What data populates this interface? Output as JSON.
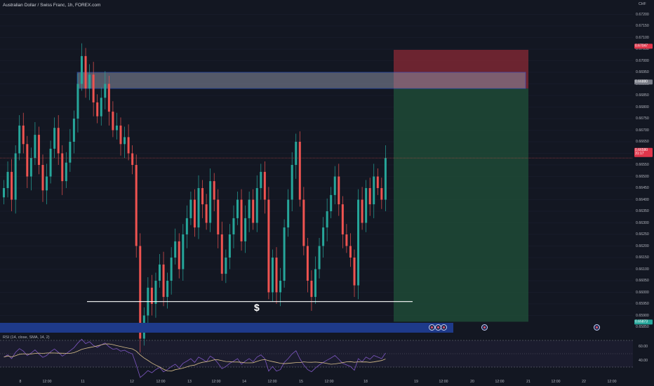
{
  "chart": {
    "symbol_title": "Australian Dollar / Swiss Franc, 1h, FOREX.com",
    "currency": "CHF",
    "annotation_text": "$",
    "rsi_title": "RSI (14, close, SMA, 14, 2)",
    "colors": {
      "background": "#131722",
      "up": "#26a69a",
      "down": "#ef5350",
      "supply_zone": "#8a8fa3",
      "stop_zone": "#8b2a36",
      "target_zone": "#1f4a36",
      "event_bar": "#1e3a8a",
      "rsi_line": "#7e57c2",
      "rsi_sma": "#d9c08a"
    },
    "price_tags": {
      "stop": "0.67047",
      "entry": "0.66880",
      "current": "0.66580",
      "countdown": "31:17",
      "target": "0.65873"
    }
  },
  "chart_data": {
    "type": "candlestick",
    "price_axis": {
      "min": 0.6585,
      "max": 0.6725,
      "ticks": [
        "0.67200",
        "0.67150",
        "0.67100",
        "0.67050",
        "0.67000",
        "0.66950",
        "0.66900",
        "0.66850",
        "0.66800",
        "0.66750",
        "0.66700",
        "0.66650",
        "0.66600",
        "0.66550",
        "0.66500",
        "0.66450",
        "0.66400",
        "0.66350",
        "0.66300",
        "0.66250",
        "0.66200",
        "0.66150",
        "0.66100",
        "0.66050",
        "0.66000",
        "0.65950",
        "0.65900",
        "0.65850"
      ]
    },
    "time_axis": [
      "8",
      "12:00",
      "11",
      "12",
      "12:00",
      "13",
      "12:00",
      "14",
      "12:00",
      "15",
      "12:00",
      "18",
      "19",
      "12:00",
      "20",
      "12:00",
      "21",
      "12:00",
      "22",
      "12:00"
    ],
    "rsi_axis": [
      "60.00",
      "40.00"
    ],
    "levels": {
      "supply_top": 0.6695,
      "supply_bottom": 0.6688,
      "stop": 0.67047,
      "entry": 0.6688,
      "target": 0.65873,
      "current": 0.6658,
      "liquidity_line": 0.6596
    },
    "closes": [
      0.6645,
      0.6652,
      0.664,
      0.666,
      0.6672,
      0.6664,
      0.665,
      0.6658,
      0.6668,
      0.6655,
      0.6644,
      0.665,
      0.6662,
      0.6671,
      0.666,
      0.6648,
      0.6656,
      0.6665,
      0.6675,
      0.669,
      0.6702,
      0.6688,
      0.6694,
      0.6682,
      0.6676,
      0.6684,
      0.669,
      0.6678,
      0.667,
      0.6672,
      0.6664,
      0.6667,
      0.666,
      0.6655,
      0.662,
      0.658,
      0.659,
      0.6602,
      0.6595,
      0.6605,
      0.6612,
      0.6598,
      0.6605,
      0.6615,
      0.6622,
      0.661,
      0.6625,
      0.6632,
      0.664,
      0.6628,
      0.6645,
      0.6638,
      0.663,
      0.6648,
      0.664,
      0.6625,
      0.6608,
      0.6615,
      0.6625,
      0.6632,
      0.664,
      0.6622,
      0.6632,
      0.664,
      0.663,
      0.6645,
      0.6652,
      0.664,
      0.66,
      0.6615,
      0.66,
      0.6605,
      0.6628,
      0.664,
      0.6655,
      0.6665,
      0.664,
      0.662,
      0.6605,
      0.6598,
      0.661,
      0.662,
      0.6628,
      0.6635,
      0.6642,
      0.665,
      0.6638,
      0.6625,
      0.662,
      0.6615,
      0.6603,
      0.664,
      0.663,
      0.6645,
      0.6638,
      0.665,
      0.6645,
      0.664,
      0.6658
    ]
  }
}
